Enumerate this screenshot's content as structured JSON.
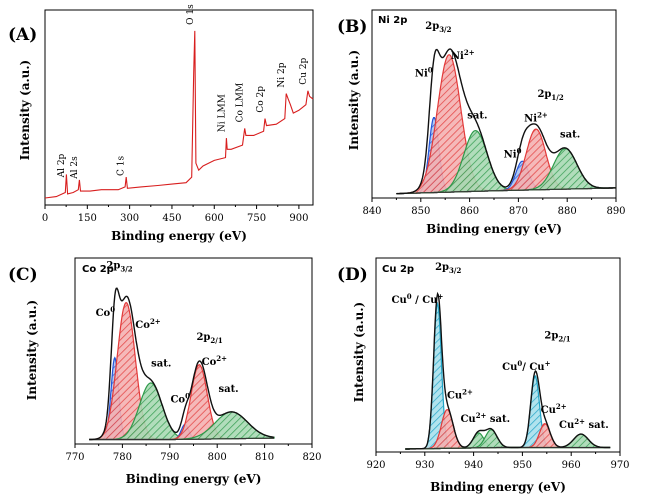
{
  "chart_data": [
    {
      "type": "line",
      "panel_label": "(A)",
      "xlabel": "Binding energy (eV)",
      "ylabel": "Intensity (a.u.)",
      "xlim": [
        0,
        950
      ],
      "xticks": [
        0,
        150,
        300,
        450,
        600,
        750,
        900
      ],
      "color": "#d81e1e",
      "series": [
        {
          "x": [
            0,
            40,
            72,
            76,
            80,
            100,
            118,
            122,
            126,
            160,
            200,
            260,
            284,
            288,
            292,
            340,
            400,
            450,
            500,
            520,
            527,
            531,
            535,
            545,
            560,
            600,
            640,
            643,
            646,
            660,
            700,
            708,
            712,
            740,
            775,
            780,
            785,
            820,
            850,
            855,
            862,
            870,
            880,
            900,
            925,
            932,
            938,
            950
          ],
          "y": [
            5,
            6,
            9,
            22,
            8,
            9,
            11,
            18,
            10,
            10,
            11,
            11,
            13,
            20,
            12,
            13,
            14,
            15,
            16,
            20,
            95,
            125,
            30,
            25,
            28,
            32,
            34,
            48,
            40,
            40,
            43,
            55,
            50,
            50,
            53,
            62,
            57,
            58,
            62,
            80,
            76,
            72,
            66,
            68,
            72,
            82,
            78,
            76
          ]
        }
      ],
      "annotations": [
        {
          "label": "Al 2p",
          "x": 74
        },
        {
          "label": "Al 2s",
          "x": 120
        },
        {
          "label": "C 1s",
          "x": 286
        },
        {
          "label": "O 1s",
          "x": 531
        },
        {
          "label": "Ni LMM",
          "x": 643
        },
        {
          "label": "Co LMM",
          "x": 708
        },
        {
          "label": "Co 2p",
          "x": 780
        },
        {
          "label": "Ni 2p",
          "x": 855
        },
        {
          "label": "Cu 2p",
          "x": 932
        }
      ]
    },
    {
      "type": "area",
      "panel_label": "(B)",
      "title": "Ni 2p",
      "xlabel": "Binding energy (eV)",
      "ylabel": "Intensity (a.u.)",
      "xlim": [
        840,
        890
      ],
      "xticks": [
        840,
        850,
        860,
        870,
        880,
        890
      ],
      "data_range": [
        845,
        890
      ],
      "background": {
        "x": [
          845,
          865,
          890
        ],
        "y": [
          3,
          5,
          7
        ]
      },
      "peaks": [
        {
          "label": "Ni0",
          "center": 852.7,
          "height": 52,
          "width": 1.0,
          "color": "#2456d8"
        },
        {
          "label": "Ni2+",
          "center": 855.8,
          "height": 95,
          "width": 2.4,
          "color": "#e23a3a"
        },
        {
          "label": "sat.",
          "center": 861.2,
          "height": 42,
          "width": 2.4,
          "color": "#2d9a4a"
        },
        {
          "label": "Ni0",
          "center": 870.8,
          "height": 20,
          "width": 1.3,
          "color": "#2456d8"
        },
        {
          "label": "Ni2+",
          "center": 873.6,
          "height": 42,
          "width": 2.0,
          "color": "#e23a3a"
        },
        {
          "label": "sat.",
          "center": 879.6,
          "height": 28,
          "width": 2.4,
          "color": "#2d9a4a"
        }
      ],
      "annotations": [
        {
          "base": "Ni",
          "sup": "0",
          "x": 850.6,
          "y": 84
        },
        {
          "base": "Ni",
          "sup": "2+",
          "x": 858.6,
          "y": 96
        },
        {
          "base": "2p",
          "sub": "3/2",
          "x": 853.6,
          "y": 117
        },
        {
          "base": "sat.",
          "x": 861.6,
          "y": 55
        },
        {
          "base": "Ni",
          "sup": "0",
          "x": 868.8,
          "y": 28
        },
        {
          "base": "Ni",
          "sup": "2+",
          "x": 873.6,
          "y": 53
        },
        {
          "base": "2p",
          "sub": "1/2",
          "x": 876.6,
          "y": 70
        },
        {
          "base": "sat.",
          "x": 880.6,
          "y": 42
        }
      ]
    },
    {
      "type": "area",
      "panel_label": "(C)",
      "title": "Co 2p",
      "xlabel": "Binding energy (eV)",
      "ylabel": "Intensity (a.u.)",
      "xlim": [
        770,
        820
      ],
      "xticks": [
        770,
        780,
        790,
        800,
        810,
        820
      ],
      "data_range": [
        773,
        812
      ],
      "background": {
        "x": [
          773,
          790,
          812
        ],
        "y": [
          3,
          3,
          4
        ]
      },
      "peaks": [
        {
          "label": "Co0",
          "center": 778.4,
          "height": 55,
          "width": 0.8,
          "color": "#2456d8"
        },
        {
          "label": "Co2+",
          "center": 780.8,
          "height": 92,
          "width": 1.9,
          "color": "#e23a3a"
        },
        {
          "label": "sat.",
          "center": 786,
          "height": 38,
          "width": 2.4,
          "color": "#2d9a4a"
        },
        {
          "label": "Co0",
          "center": 793.2,
          "height": 10,
          "width": 0.8,
          "color": "#2456d8"
        },
        {
          "label": "Co2+",
          "center": 796.2,
          "height": 50,
          "width": 1.7,
          "color": "#e23a3a"
        },
        {
          "label": "sat.",
          "center": 803,
          "height": 18,
          "width": 3.4,
          "color": "#2d9a4a"
        }
      ],
      "annotations": [
        {
          "base": "Co",
          "sup": "0",
          "x": 776.4,
          "y": 86
        },
        {
          "base": "2p",
          "sub": "3/2",
          "x": 779.4,
          "y": 118
        },
        {
          "base": "Co",
          "sup": "2+",
          "x": 785.4,
          "y": 78
        },
        {
          "base": "sat.",
          "x": 788.2,
          "y": 52
        },
        {
          "base": "Co",
          "sup": "0",
          "x": 792.2,
          "y": 28
        },
        {
          "base": "2p",
          "sub": "2/1",
          "x": 798.4,
          "y": 70
        },
        {
          "base": "Co",
          "sup": "2+",
          "x": 799.4,
          "y": 53
        },
        {
          "base": "sat.",
          "x": 802.4,
          "y": 35
        }
      ]
    },
    {
      "type": "area",
      "panel_label": "(D)",
      "title": "Cu 2p",
      "xlabel": "Binding energy (eV)",
      "ylabel": "Intensity (a.u.)",
      "xlim": [
        920,
        970
      ],
      "xticks": [
        920,
        930,
        940,
        950,
        960,
        970
      ],
      "data_range": [
        926,
        968
      ],
      "background": {
        "x": [
          926,
          945,
          968
        ],
        "y": [
          2,
          3,
          3
        ]
      },
      "peaks": [
        {
          "label": "Cu0/Cu+",
          "center": 932.6,
          "height": 97,
          "width": 0.8,
          "color": "#1fa3c6"
        },
        {
          "label": "Cu2+",
          "center": 934.6,
          "height": 26,
          "width": 1.2,
          "color": "#e23a3a"
        },
        {
          "label": "Cu2+ sat.",
          "center": 941,
          "height": 10,
          "width": 1.1,
          "color": "#2d9a4a"
        },
        {
          "label": "Cu2+ sat.",
          "center": 943.6,
          "height": 12,
          "width": 1.2,
          "color": "#2d9a4a"
        },
        {
          "label": "Cu0/Cu+",
          "center": 952.6,
          "height": 48,
          "width": 0.9,
          "color": "#1fa3c6"
        },
        {
          "label": "Cu2+",
          "center": 954.6,
          "height": 16,
          "width": 1.1,
          "color": "#e23a3a"
        },
        {
          "label": "Cu2+ sat.",
          "center": 962,
          "height": 9,
          "width": 1.5,
          "color": "#2d9a4a"
        }
      ],
      "annotations": [
        {
          "base": "Cu",
          "sup": "0",
          "mid": " / Cu",
          "sup2": "+",
          "x": 928.5,
          "y": 100
        },
        {
          "base": "2p",
          "sub": "3/2",
          "x": 934.8,
          "y": 122
        },
        {
          "base": "Cu",
          "sup": "2+",
          "x": 937.2,
          "y": 36
        },
        {
          "base": "Cu",
          "sup": "2+",
          "mid": " sat.",
          "x": 942.4,
          "y": 20
        },
        {
          "base": "Cu",
          "sup": "0",
          "mid": "/ Cu",
          "sup2": "+",
          "x": 950.8,
          "y": 55
        },
        {
          "base": "2p",
          "sub": "2/1",
          "x": 957.2,
          "y": 76
        },
        {
          "base": "Cu",
          "sup": "2+",
          "x": 956.4,
          "y": 26
        },
        {
          "base": "Cu",
          "sup": "2+",
          "mid": " sat.",
          "x": 962.6,
          "y": 16
        }
      ]
    }
  ]
}
